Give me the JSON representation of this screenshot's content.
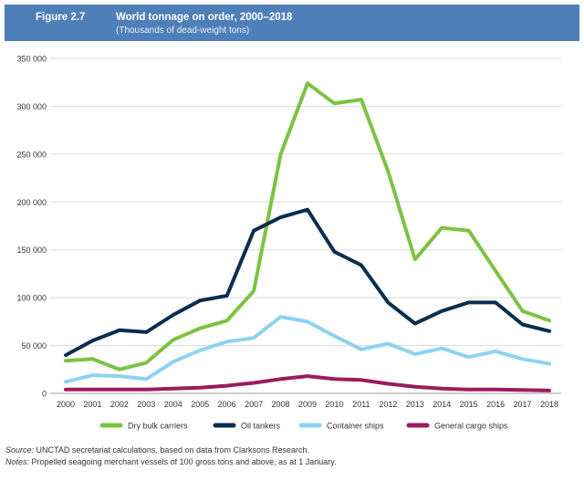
{
  "figure": {
    "number": "Figure 2.7",
    "title": "World tonnage on order, 2000–2018",
    "subtitle": "(Thousands of dead-weight tons)"
  },
  "chart_data": {
    "type": "line",
    "x": [
      "2000",
      "2001",
      "2002",
      "2003",
      "2004",
      "2005",
      "2006",
      "2007",
      "2008",
      "2009",
      "2010",
      "2011",
      "2012",
      "2013",
      "2014",
      "2015",
      "2016",
      "2017",
      "2018"
    ],
    "ylim": [
      0,
      350000
    ],
    "yticks": [
      0,
      50000,
      100000,
      150000,
      200000,
      250000,
      300000,
      350000
    ],
    "ytick_labels": [
      "0",
      "50 000",
      "100 000",
      "150 000",
      "200 000",
      "250 000",
      "300 000",
      "350 000"
    ],
    "grid": "horizontal",
    "legend_position": "bottom",
    "series": [
      {
        "name": "Dry bulk carriers",
        "color": "#7dc242",
        "values": [
          34000,
          36000,
          25000,
          32000,
          56000,
          68000,
          76000,
          107000,
          250000,
          324000,
          303000,
          307000,
          232000,
          140000,
          173000,
          170000,
          128000,
          86000,
          76000
        ]
      },
      {
        "name": "Oil tankers",
        "color": "#0b2d4e",
        "values": [
          40000,
          55000,
          66000,
          64000,
          82000,
          97000,
          102000,
          170000,
          184000,
          192000,
          148000,
          134000,
          95000,
          73000,
          86000,
          95000,
          95000,
          72000,
          65000
        ]
      },
      {
        "name": "Container ships",
        "color": "#8ed2f0",
        "values": [
          12000,
          19000,
          18000,
          15000,
          33000,
          45000,
          54000,
          58000,
          80000,
          75000,
          60000,
          46000,
          52000,
          41000,
          47000,
          38000,
          44000,
          36000,
          31000
        ]
      },
      {
        "name": "General cargo ships",
        "color": "#9c1c5c",
        "values": [
          4000,
          4000,
          4000,
          4000,
          5000,
          6000,
          8000,
          11000,
          15000,
          18000,
          15000,
          14000,
          10000,
          7000,
          5000,
          4000,
          4000,
          3500,
          3000
        ]
      }
    ]
  },
  "notes": {
    "source_label": "Source:",
    "source_text": " UNCTAD secretariat calculations, based on data from Clarksons Research.",
    "notes_label": "Notes:",
    "notes_text": " Propelled seagoing merchant vessels of 100 gross tons and above, as at 1 January."
  }
}
